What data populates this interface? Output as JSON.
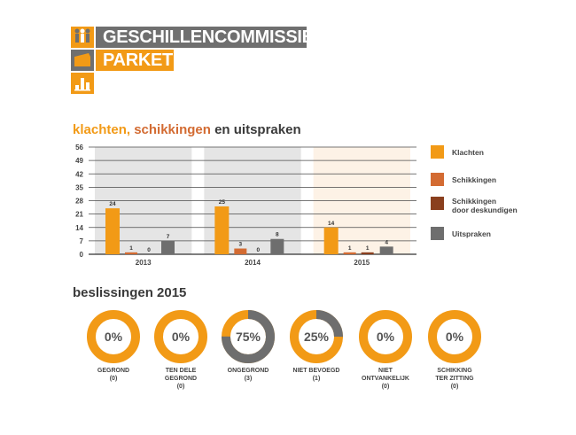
{
  "brand": {
    "line1": "GESCHILLENCOMMISSIE",
    "line2": "PARKET",
    "colors": {
      "orange": "#F29A16",
      "gray": "#6F6F6F"
    },
    "icons": [
      "people-icon",
      "folder-icon",
      "chart-icon"
    ]
  },
  "chart_title": {
    "part1": "klachten,",
    "part2": "schikkingen",
    "part3": "en uitspraken"
  },
  "chart_data": [
    {
      "type": "bar",
      "title": "klachten, schikkingen en uitspraken",
      "categories": [
        "2013",
        "2014",
        "2015"
      ],
      "yticks": [
        "56",
        "49",
        "42",
        "35",
        "28",
        "21",
        "14",
        "7",
        "0"
      ],
      "ylim": [
        0,
        56
      ],
      "grid": true,
      "legend_position": "right",
      "series": [
        {
          "name": "Klachten",
          "color": "#F29A16",
          "values": [
            24,
            25,
            14
          ],
          "labels": [
            "24",
            "25",
            "14"
          ]
        },
        {
          "name": "Schikkingen",
          "color": "#D36B32",
          "values": [
            1,
            3,
            1
          ],
          "labels": [
            "1",
            "3",
            "1"
          ]
        },
        {
          "name": "Schikkingen door deskundigen",
          "color": "#8A3F1E",
          "values": [
            0,
            0,
            1
          ],
          "labels": [
            "0",
            "0",
            "1"
          ]
        },
        {
          "name": "Uitspraken",
          "color": "#6E6E6E",
          "values": [
            7,
            8,
            4
          ],
          "labels": [
            "7",
            "8",
            "4"
          ]
        }
      ],
      "column_backgrounds": [
        "#E5E5E5",
        "#E5E5E5",
        "#FDF2E6"
      ]
    },
    {
      "type": "pie",
      "title": "beslissingen 2015",
      "slices": [
        {
          "label_line1": "GEGROND",
          "label_line2": "",
          "count": "(0)",
          "percent": 0,
          "pct_text": "0%"
        },
        {
          "label_line1": "TEN DELE",
          "label_line2": "GEGROND",
          "count": "(0)",
          "percent": 0,
          "pct_text": "0%"
        },
        {
          "label_line1": "ONGEGROND",
          "label_line2": "",
          "count": "(3)",
          "percent": 75,
          "pct_text": "75%"
        },
        {
          "label_line1": "NIET BEVOEGD",
          "label_line2": "",
          "count": "(1)",
          "percent": 25,
          "pct_text": "25%"
        },
        {
          "label_line1": "NIET",
          "label_line2": "ONTVANKELIJK",
          "count": "(0)",
          "percent": 0,
          "pct_text": "0%"
        },
        {
          "label_line1": "SCHIKKING",
          "label_line2": "TER ZITTING",
          "count": "(0)",
          "percent": 0,
          "pct_text": "0%"
        }
      ]
    }
  ],
  "legend_labels": {
    "l1": "Klachten",
    "l2": "Schikkingen",
    "l3a": "Schikkingen",
    "l3b": "door deskundigen",
    "l4": "Uitspraken"
  },
  "donut_colors": {
    "track": "#F29A16",
    "fill": "#6E6E6E"
  }
}
